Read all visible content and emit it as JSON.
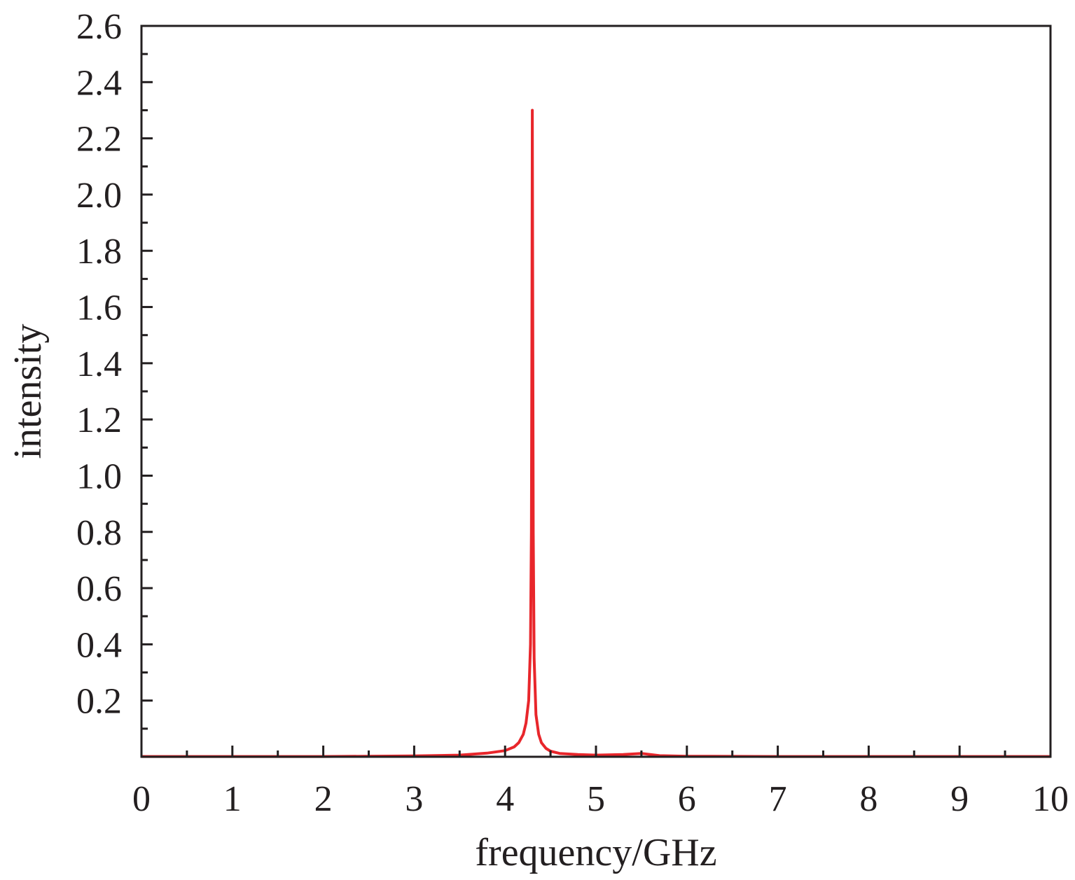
{
  "chart_data": {
    "type": "line",
    "title": "",
    "xlabel": "frequency/GHz",
    "ylabel": "intensity",
    "xlim": [
      0,
      10
    ],
    "ylim": [
      0,
      2.6
    ],
    "x_ticks": [
      "0",
      "1",
      "2",
      "3",
      "4",
      "5",
      "6",
      "7",
      "8",
      "9",
      "10"
    ],
    "y_ticks": [
      "0.2",
      "0.4",
      "0.6",
      "0.8",
      "1.0",
      "1.2",
      "1.4",
      "1.6",
      "1.8",
      "2.0",
      "2.2",
      "2.4",
      "2.6"
    ],
    "grid": false,
    "legend": "none",
    "colors": {
      "series": "#e8262b",
      "axis": "#231f20"
    },
    "series": [
      {
        "x": [
          0.0,
          1.0,
          2.0,
          3.0,
          3.5,
          3.8,
          4.0,
          4.1,
          4.15,
          4.2,
          4.23,
          4.26,
          4.28,
          4.29,
          4.295,
          4.3,
          4.305,
          4.31,
          4.32,
          4.34,
          4.37,
          4.4,
          4.45,
          4.5,
          4.6,
          4.8,
          5.0,
          5.3,
          5.5,
          5.7,
          6.0,
          7.0,
          8.0,
          9.0,
          10.0
        ],
        "y": [
          0.001,
          0.001,
          0.001,
          0.003,
          0.006,
          0.013,
          0.022,
          0.035,
          0.05,
          0.08,
          0.12,
          0.2,
          0.4,
          0.8,
          1.5,
          2.3,
          1.5,
          0.8,
          0.35,
          0.15,
          0.08,
          0.05,
          0.03,
          0.02,
          0.012,
          0.008,
          0.006,
          0.008,
          0.012,
          0.004,
          0.002,
          0.001,
          0.001,
          0.001,
          0.001
        ]
      }
    ]
  }
}
